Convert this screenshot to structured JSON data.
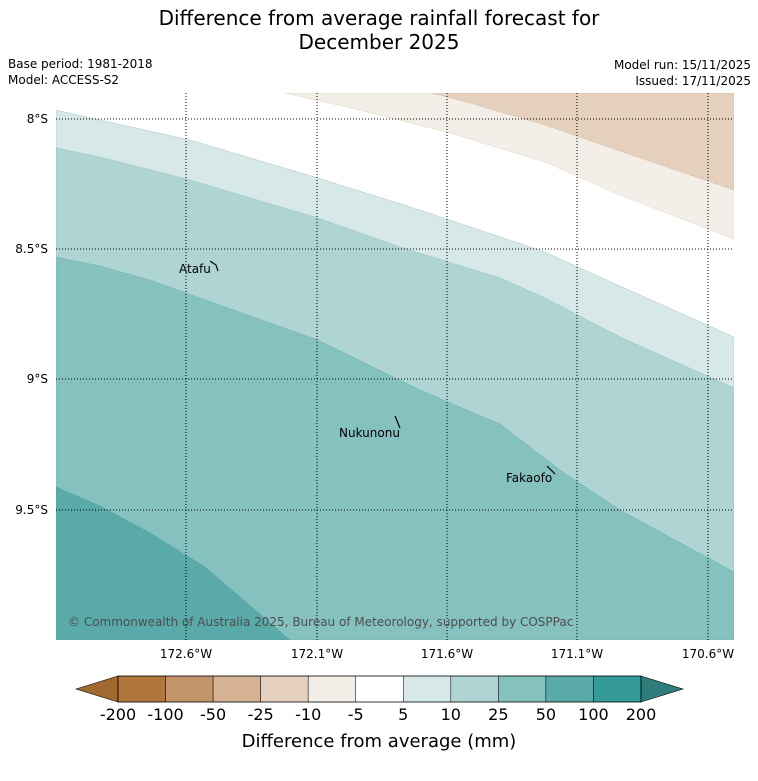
{
  "title_line1": "Difference from average rainfall forecast for",
  "title_line2": "December 2025",
  "base_period": "Base period: 1981-2018",
  "model": "Model: ACCESS-S2",
  "model_run": "Model run: 15/11/2025",
  "issued": "Issued: 17/11/2025",
  "lat_labels": [
    "8°S",
    "8.5°S",
    "9°S",
    "9.5°S"
  ],
  "lon_labels": [
    "172.6°W",
    "172.1°W",
    "171.6°W",
    "171.1°W",
    "170.6°W"
  ],
  "places": [
    {
      "name": "Atafu"
    },
    {
      "name": "Nukunonu"
    },
    {
      "name": "Fakaofo"
    }
  ],
  "copyright": "© Commonwealth of Australia 2025, Bureau of Meteorology, supported by COSPPac",
  "colorbar": {
    "title": "Difference from average (mm)",
    "tick_labels": [
      "-200",
      "-100",
      "-50",
      "-25",
      "-10",
      "-5",
      "5",
      "10",
      "25",
      "50",
      "100",
      "200"
    ],
    "colors": [
      "#a0692f",
      "#b0773c",
      "#c4946a",
      "#d6b295",
      "#e5cfbd",
      "#f3eee8",
      "#ffffff",
      "#d6e9e8",
      "#aed5d4",
      "#84c1bf",
      "#5aaaa9",
      "#339a98",
      "#2f7d7b"
    ]
  }
}
